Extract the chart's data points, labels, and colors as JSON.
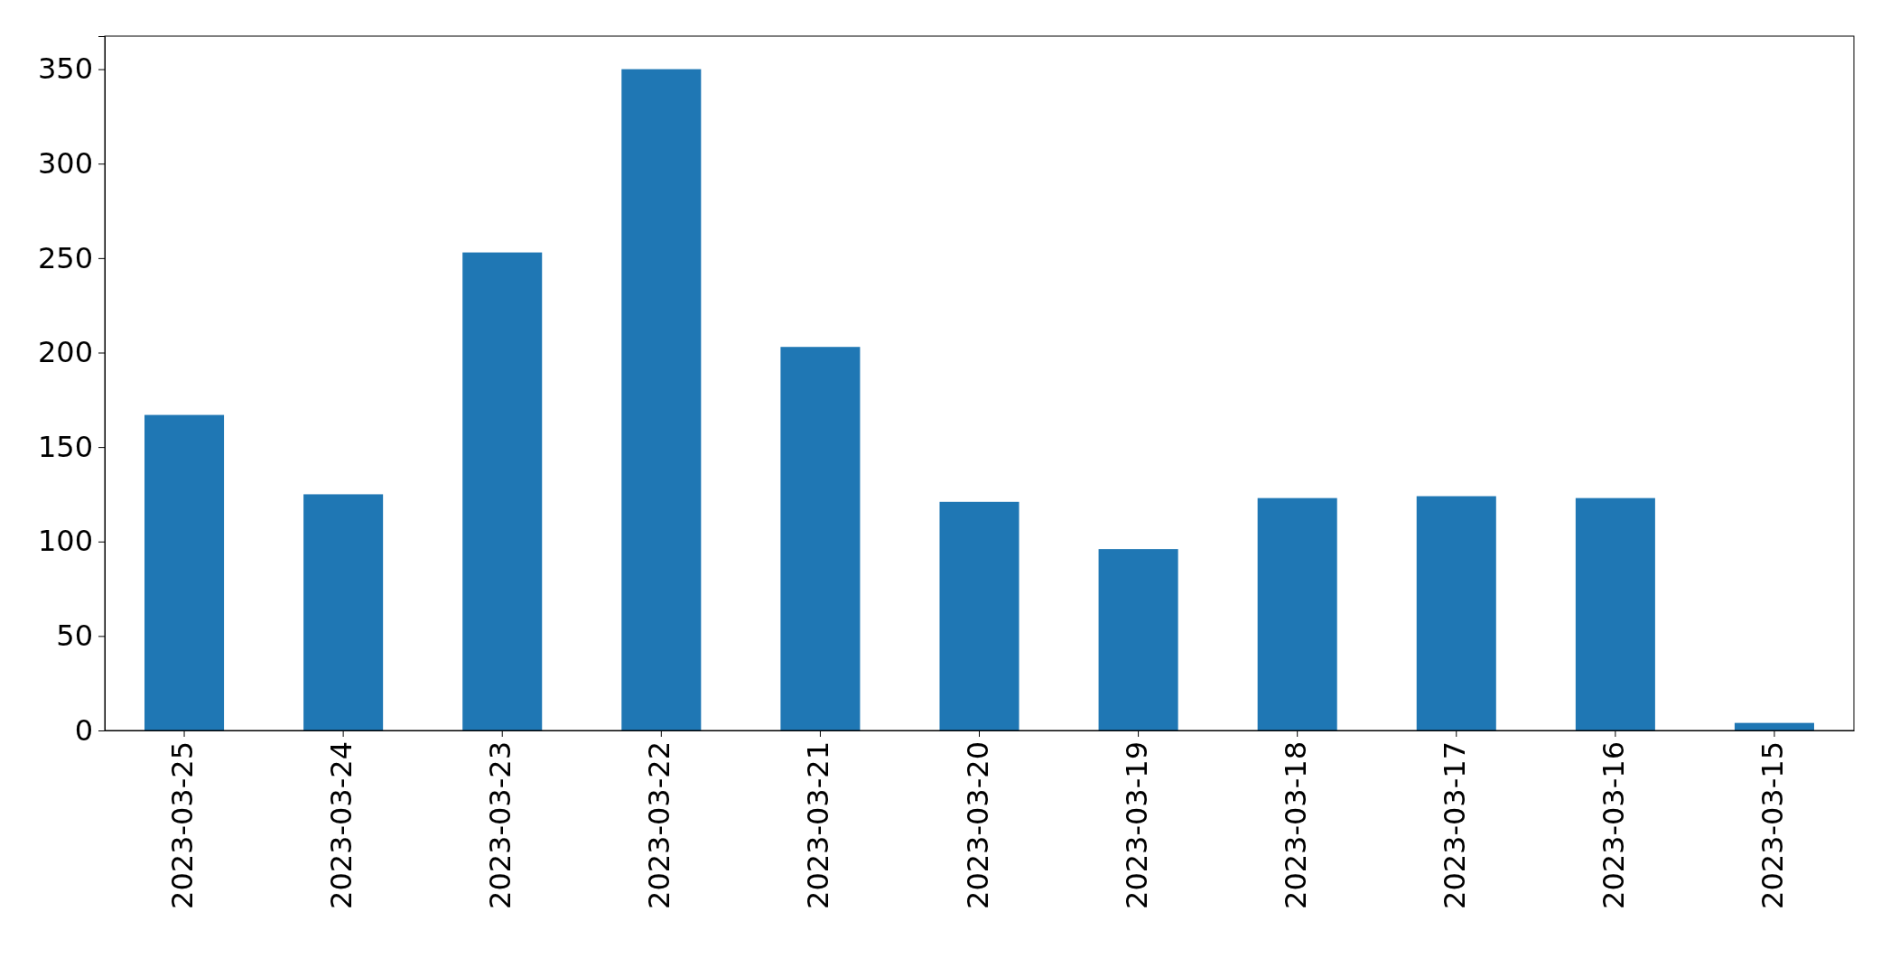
{
  "chart_data": {
    "type": "bar",
    "categories": [
      "2023-03-25",
      "2023-03-24",
      "2023-03-23",
      "2023-03-22",
      "2023-03-21",
      "2023-03-20",
      "2023-03-19",
      "2023-03-18",
      "2023-03-17",
      "2023-03-16",
      "2023-03-15"
    ],
    "values": [
      167,
      125,
      253,
      350,
      203,
      121,
      96,
      123,
      124,
      123,
      4
    ],
    "color": "#1f77b4",
    "ylim": [
      0,
      367.5
    ],
    "yticks": [
      0,
      50,
      100,
      150,
      200,
      250,
      300,
      350
    ],
    "grid": false
  }
}
